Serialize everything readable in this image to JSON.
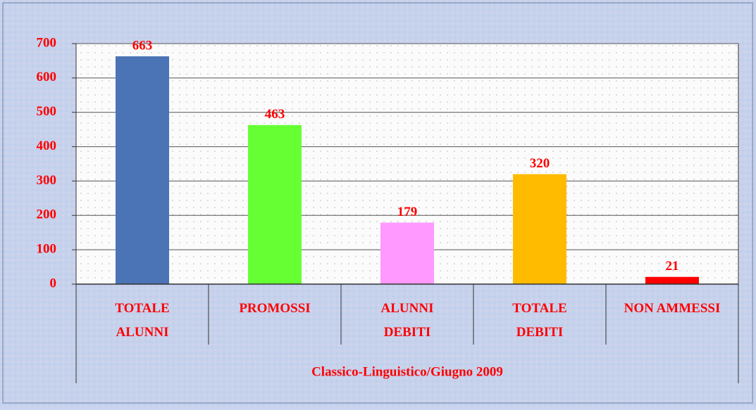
{
  "chart_data": {
    "type": "bar",
    "categories": [
      "TOTALE\nALUNNI",
      "PROMOSSI",
      "ALUNNI\nDEBITI",
      "TOTALE\nDEBITI",
      "NON AMMESSI"
    ],
    "values": [
      663,
      463,
      179,
      320,
      21
    ],
    "colors": [
      "#4b74b6",
      "#66ff33",
      "#ff99ff",
      "#ffbb00",
      "#ff0000"
    ],
    "x_label": "Classico-Linguistico/Giugno 2009",
    "ylim": [
      0,
      700
    ],
    "yticks": [
      0,
      100,
      200,
      300,
      400,
      500,
      600,
      700
    ],
    "grid": true
  }
}
